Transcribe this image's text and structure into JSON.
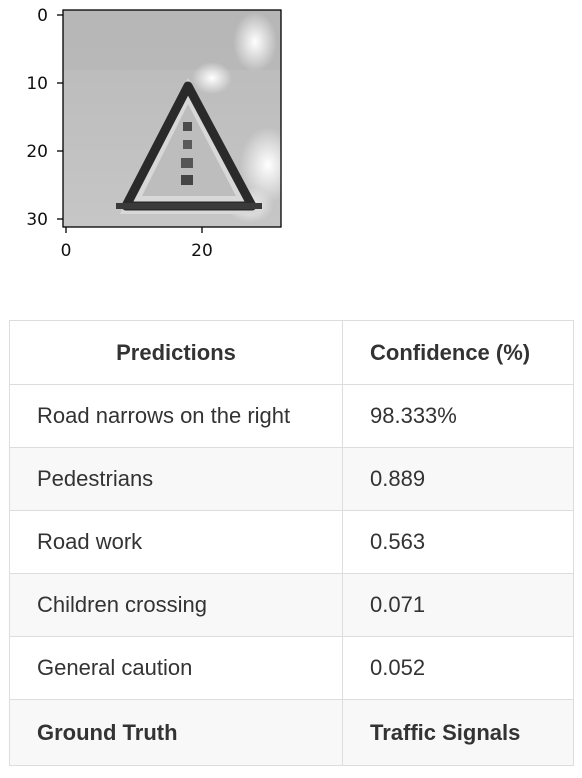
{
  "image_plot": {
    "x_ticks": [
      "0",
      "20"
    ],
    "y_ticks": [
      "0",
      "10",
      "20",
      "30"
    ],
    "image_content": "grayscale triangular warning traffic sign"
  },
  "table": {
    "headers": {
      "predictions": "Predictions",
      "confidence": "Confidence (%)"
    },
    "rows": [
      {
        "label": "Road narrows on the right",
        "confidence": "98.333%"
      },
      {
        "label": "Pedestrians",
        "confidence": "0.889"
      },
      {
        "label": "Road work",
        "confidence": "0.563"
      },
      {
        "label": "Children crossing",
        "confidence": "0.071"
      },
      {
        "label": "General caution",
        "confidence": "0.052"
      }
    ],
    "ground_truth": {
      "label": "Ground Truth",
      "value": "Traffic Signals"
    }
  }
}
